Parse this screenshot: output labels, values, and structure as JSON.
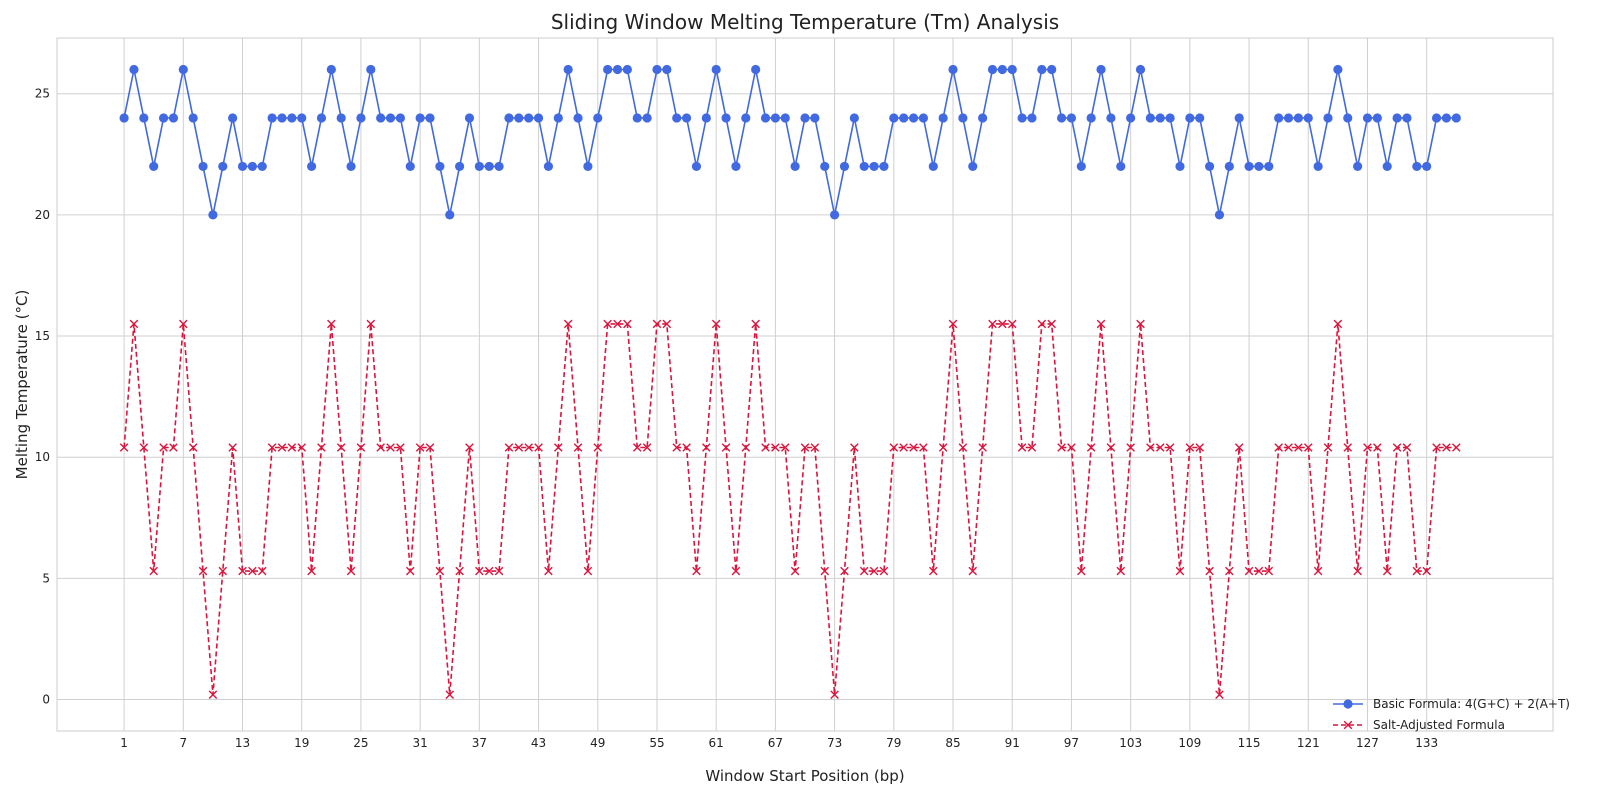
{
  "chart_data": {
    "type": "line",
    "title": "Sliding Window Melting Temperature (Tm) Analysis",
    "xlabel": "Window Start Position (bp)",
    "ylabel": "Melting Temperature (°C)",
    "x_start": 1,
    "x_ticks": [
      1,
      7,
      13,
      19,
      25,
      31,
      37,
      43,
      49,
      55,
      61,
      67,
      73,
      79,
      85,
      91,
      97,
      103,
      109,
      115,
      121,
      127,
      133
    ],
    "xlim": [
      -5.8,
      145.8
    ],
    "ylim": [
      -1.3,
      27.3
    ],
    "y_ticks": [
      0,
      5,
      10,
      15,
      20,
      25
    ],
    "grid": true,
    "legend_position": "lower-right",
    "series": [
      {
        "name": "Basic Formula: 4(G+C) + 2(A+T)",
        "color": "#4169e1",
        "marker": "circle",
        "line_style": "solid",
        "values": [
          24,
          26,
          24,
          22,
          24,
          24,
          26,
          24,
          22,
          20,
          22,
          24,
          22,
          22,
          22,
          24,
          24,
          24,
          24,
          22,
          24,
          26,
          24,
          22,
          24,
          26,
          24,
          24,
          24,
          22,
          24,
          24,
          22,
          20,
          22,
          24,
          22,
          22,
          22,
          24,
          24,
          24,
          24,
          22,
          24,
          26,
          24,
          22,
          24,
          26,
          26,
          26,
          24,
          24,
          26,
          26,
          24,
          24,
          22,
          24,
          26,
          24,
          22,
          24,
          26,
          24,
          24,
          24,
          22,
          24,
          24,
          22,
          20,
          22,
          24,
          22,
          22,
          22,
          24,
          24,
          24,
          24,
          22,
          24,
          26,
          24,
          22,
          24,
          26,
          26,
          26,
          24,
          24,
          26,
          26,
          24,
          24,
          22,
          24,
          26,
          24,
          22,
          24,
          26,
          24,
          24,
          24,
          22,
          24,
          24,
          22,
          20,
          22,
          24,
          22,
          22,
          22,
          24,
          24,
          24,
          24,
          22,
          24,
          26,
          24,
          22,
          24,
          24,
          22,
          24,
          24,
          22,
          22,
          24,
          24,
          24
        ]
      },
      {
        "name": "Salt-Adjusted Formula",
        "color": "#dc143c",
        "marker": "x",
        "line_style": "dashed",
        "values": [
          10.4,
          15.5,
          10.4,
          5.3,
          10.4,
          10.4,
          15.5,
          10.4,
          5.3,
          0.2,
          5.3,
          10.4,
          5.3,
          5.3,
          5.3,
          10.4,
          10.4,
          10.4,
          10.4,
          5.3,
          10.4,
          15.5,
          10.4,
          5.3,
          10.4,
          15.5,
          10.4,
          10.4,
          10.4,
          5.3,
          10.4,
          10.4,
          5.3,
          0.2,
          5.3,
          10.4,
          5.3,
          5.3,
          5.3,
          10.4,
          10.4,
          10.4,
          10.4,
          5.3,
          10.4,
          15.5,
          10.4,
          5.3,
          10.4,
          15.5,
          15.5,
          15.5,
          10.4,
          10.4,
          15.5,
          15.5,
          10.4,
          10.4,
          5.3,
          10.4,
          15.5,
          10.4,
          5.3,
          10.4,
          15.5,
          10.4,
          10.4,
          10.4,
          5.3,
          10.4,
          10.4,
          5.3,
          0.2,
          5.3,
          10.4,
          5.3,
          5.3,
          5.3,
          10.4,
          10.4,
          10.4,
          10.4,
          5.3,
          10.4,
          15.5,
          10.4,
          5.3,
          10.4,
          15.5,
          15.5,
          15.5,
          10.4,
          10.4,
          15.5,
          15.5,
          10.4,
          10.4,
          5.3,
          10.4,
          15.5,
          10.4,
          5.3,
          10.4,
          15.5,
          10.4,
          10.4,
          10.4,
          5.3,
          10.4,
          10.4,
          5.3,
          0.2,
          5.3,
          10.4,
          5.3,
          5.3,
          5.3,
          10.4,
          10.4,
          10.4,
          10.4,
          5.3,
          10.4,
          15.5,
          10.4,
          5.3,
          10.4,
          10.4,
          5.3,
          10.4,
          10.4,
          5.3,
          5.3,
          10.4,
          10.4,
          10.4
        ]
      }
    ]
  }
}
